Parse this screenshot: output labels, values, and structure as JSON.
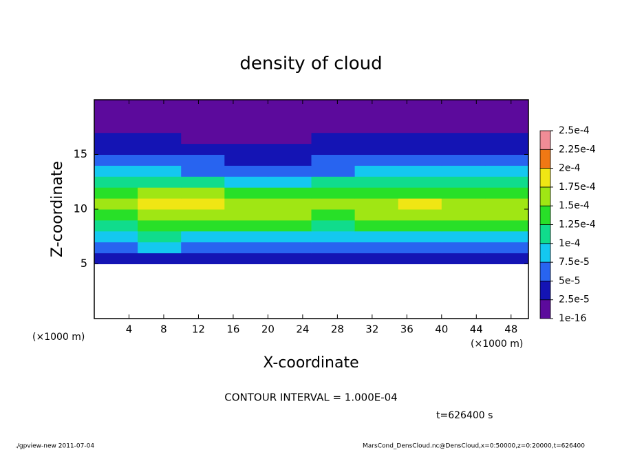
{
  "chart_data": {
    "type": "heatmap",
    "title": "density of cloud",
    "x_label": "X-coordinate",
    "y_label": "Z-coordinate",
    "x_unit_labels": [
      "(×1000 m)",
      "(×1000 m)"
    ],
    "annotations": [
      "CONTOUR INTERVAL = 1.000E-04",
      "t=626400 s"
    ],
    "footer_left": "./gpview-new  2011-07-04",
    "footer_right": "MarsCond_DensCloud.nc@DensCloud,x=0:50000,z=0:20000,t=626400",
    "xlim": [
      0,
      50
    ],
    "xticks": [
      4,
      8,
      12,
      16,
      20,
      24,
      28,
      32,
      36,
      40,
      44,
      48
    ],
    "ylim": [
      0,
      20
    ],
    "yticks": [
      5,
      10,
      15
    ],
    "x_edges": [
      0,
      5,
      10,
      15,
      20,
      25,
      30,
      35,
      40,
      45,
      50
    ],
    "y_edges": [
      5,
      6,
      7,
      8,
      9,
      10,
      11,
      12,
      13,
      14,
      15,
      16,
      17,
      18,
      19,
      20
    ],
    "values": [
      [
        3e-05,
        4e-05,
        3e-05,
        3e-05,
        3e-05,
        3e-05,
        3e-05,
        3e-05,
        3e-05,
        3e-05
      ],
      [
        6e-05,
        8e-05,
        6e-05,
        6e-05,
        6e-05,
        6e-05,
        6e-05,
        6e-05,
        6e-05,
        6e-05
      ],
      [
        9e-05,
        0.0001,
        9e-05,
        9e-05,
        9e-05,
        9e-05,
        9e-05,
        9e-05,
        9e-05,
        9e-05
      ],
      [
        0.00012,
        0.00013,
        0.000135,
        0.00013,
        0.00013,
        0.00012,
        0.00013,
        0.000135,
        0.00013,
        0.00013
      ],
      [
        0.00014,
        0.00016,
        0.00017,
        0.00016,
        0.00015,
        0.00014,
        0.00015,
        0.00016,
        0.00016,
        0.00015
      ],
      [
        0.00015,
        0.00018,
        0.00019,
        0.00017,
        0.00016,
        0.00015,
        0.00016,
        0.00018,
        0.00017,
        0.00016
      ],
      [
        0.00013,
        0.00015,
        0.00015,
        0.00014,
        0.00013,
        0.00013,
        0.00013,
        0.00014,
        0.00014,
        0.00013
      ],
      [
        0.0001,
        0.00011,
        0.00011,
        9e-05,
        8e-05,
        0.0001,
        0.00011,
        0.0001,
        0.0001,
        0.0001
      ],
      [
        8e-05,
        8e-05,
        7e-05,
        6e-05,
        6e-05,
        7e-05,
        8e-05,
        8e-05,
        8e-05,
        8e-05
      ],
      [
        5e-05,
        6e-05,
        5e-05,
        4e-05,
        4e-05,
        5e-05,
        6e-05,
        6e-05,
        6e-05,
        5e-05
      ],
      [
        4e-05,
        4e-05,
        3e-05,
        3e-05,
        3e-05,
        4e-05,
        4e-05,
        4e-05,
        4e-05,
        4e-05
      ],
      [
        3e-05,
        3e-05,
        2e-05,
        2e-05,
        2e-05,
        3e-05,
        3e-05,
        3e-05,
        3e-05,
        3e-05
      ],
      [
        2e-05,
        1e-05,
        1e-05,
        1e-05,
        1e-05,
        2e-05,
        2e-05,
        2e-05,
        2e-05,
        2e-05
      ],
      [
        1e-05,
        1e-05,
        1e-05,
        1e-05,
        1e-05,
        1e-05,
        1e-05,
        1e-05,
        1e-05,
        1e-05
      ],
      [
        1e-05,
        1e-05,
        1e-05,
        1e-05,
        1e-05,
        1e-05,
        1e-05,
        1e-05,
        1e-05,
        1e-05
      ]
    ],
    "levels": [
      {
        "value": 1e-16,
        "label": "1e-16"
      },
      {
        "value": 2.5e-05,
        "label": "2.5e-5"
      },
      {
        "value": 5e-05,
        "label": "5e-5"
      },
      {
        "value": 7.5e-05,
        "label": "7.5e-5"
      },
      {
        "value": 0.0001,
        "label": "1e-4"
      },
      {
        "value": 0.000125,
        "label": "1.25e-4"
      },
      {
        "value": 0.00015,
        "label": "1.5e-4"
      },
      {
        "value": 0.000175,
        "label": "1.75e-4"
      },
      {
        "value": 0.0002,
        "label": "2e-4"
      },
      {
        "value": 0.000225,
        "label": "2.25e-4"
      },
      {
        "value": 0.00025,
        "label": "2.5e-4"
      }
    ],
    "colors": [
      "#5c0a9c",
      "#1414b4",
      "#2864f0",
      "#14c8f0",
      "#10dc8c",
      "#28e028",
      "#a0e614",
      "#f0e614",
      "#f07814",
      "#f08c96"
    ]
  }
}
